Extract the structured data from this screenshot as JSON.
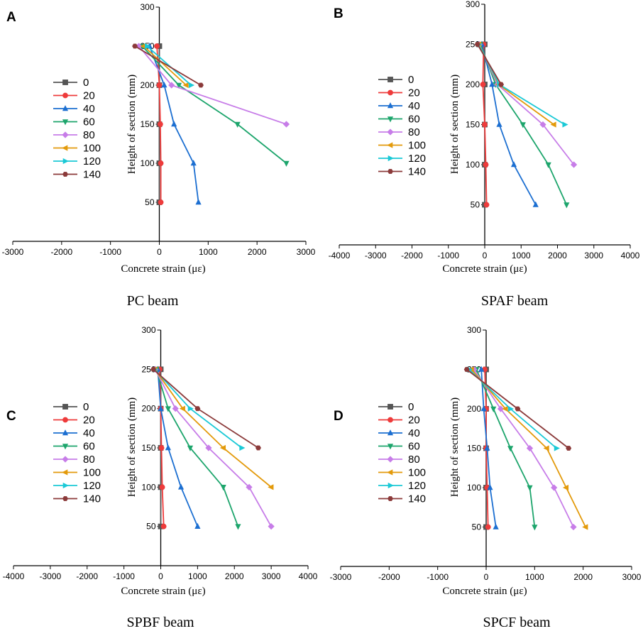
{
  "figure": {
    "series_names": [
      "0",
      "20",
      "40",
      "60",
      "80",
      "100",
      "120",
      "140"
    ],
    "series_colors": [
      "#555555",
      "#ee3b3b",
      "#1c6fd1",
      "#1da56c",
      "#c77de8",
      "#e39a0b",
      "#1bc9d6",
      "#8b3a3a"
    ],
    "markers": [
      "square",
      "circle",
      "triangle-up",
      "triangle-down",
      "diamond",
      "triangle-left",
      "triangle-right",
      "hexagon"
    ]
  },
  "chart_data": [
    {
      "panel": "A",
      "caption": "PC beam",
      "type": "line",
      "xlabel": "Concrete strain (με)",
      "ylabel": "Height of section (mm)",
      "xlim": [
        -3000,
        3000
      ],
      "ylim": [
        0,
        300
      ],
      "xticks": [
        -3000,
        -2000,
        -1000,
        0,
        1000,
        2000,
        3000
      ],
      "yticks": [
        50,
        100,
        150,
        200,
        250,
        300
      ],
      "series": [
        {
          "name": "0",
          "points": [
            [
              0,
              250
            ],
            [
              0,
              200
            ],
            [
              0,
              150
            ],
            [
              0,
              100
            ],
            [
              0,
              50
            ]
          ]
        },
        {
          "name": "20",
          "points": [
            [
              -50,
              250
            ],
            [
              0,
              200
            ],
            [
              20,
              150
            ],
            [
              30,
              100
            ],
            [
              30,
              50
            ]
          ]
        },
        {
          "name": "40",
          "points": [
            [
              -200,
              250
            ],
            [
              100,
              200
            ],
            [
              300,
              150
            ],
            [
              700,
              100
            ],
            [
              800,
              50
            ]
          ]
        },
        {
          "name": "60",
          "points": [
            [
              -350,
              250
            ],
            [
              400,
              200
            ],
            [
              1600,
              150
            ],
            [
              2600,
              100
            ]
          ]
        },
        {
          "name": "80",
          "points": [
            [
              -420,
              250
            ],
            [
              250,
              200
            ],
            [
              2600,
              150
            ]
          ]
        },
        {
          "name": "100",
          "points": [
            [
              -320,
              250
            ],
            [
              550,
              200
            ]
          ]
        },
        {
          "name": "120",
          "points": [
            [
              -250,
              250
            ],
            [
              650,
              200
            ]
          ]
        },
        {
          "name": "140",
          "points": [
            [
              -500,
              250
            ],
            [
              850,
              200
            ]
          ]
        }
      ]
    },
    {
      "panel": "B",
      "caption": "SPAF beam",
      "type": "line",
      "xlabel": "Concrete strain (με)",
      "ylabel": "Height of section (mm)",
      "xlim": [
        -4000,
        4000
      ],
      "ylim": [
        0,
        300
      ],
      "xticks": [
        -4000,
        -3000,
        -2000,
        -1000,
        0,
        1000,
        2000,
        3000,
        4000
      ],
      "yticks": [
        50,
        100,
        150,
        200,
        250,
        300
      ],
      "series": [
        {
          "name": "0",
          "points": [
            [
              0,
              250
            ],
            [
              0,
              200
            ],
            [
              0,
              150
            ],
            [
              0,
              100
            ],
            [
              0,
              50
            ]
          ]
        },
        {
          "name": "20",
          "points": [
            [
              -30,
              250
            ],
            [
              -50,
              200
            ],
            [
              0,
              150
            ],
            [
              30,
              100
            ],
            [
              50,
              50
            ]
          ]
        },
        {
          "name": "40",
          "points": [
            [
              -80,
              250
            ],
            [
              200,
              200
            ],
            [
              400,
              150
            ],
            [
              800,
              100
            ],
            [
              1400,
              50
            ]
          ]
        },
        {
          "name": "60",
          "points": [
            [
              -120,
              250
            ],
            [
              300,
              200
            ],
            [
              1050,
              150
            ],
            [
              1750,
              100
            ],
            [
              2250,
              50
            ]
          ]
        },
        {
          "name": "80",
          "points": [
            [
              -150,
              250
            ],
            [
              350,
              200
            ],
            [
              1600,
              150
            ],
            [
              2450,
              100
            ]
          ]
        },
        {
          "name": "100",
          "points": [
            [
              -160,
              250
            ],
            [
              380,
              200
            ],
            [
              1900,
              150
            ]
          ]
        },
        {
          "name": "120",
          "points": [
            [
              -170,
              250
            ],
            [
              400,
              200
            ],
            [
              2200,
              150
            ]
          ]
        },
        {
          "name": "140",
          "points": [
            [
              -200,
              250
            ],
            [
              450,
              200
            ]
          ]
        }
      ]
    },
    {
      "panel": "C",
      "caption": "SPBF beam",
      "type": "line",
      "xlabel": "Concrete strain (με)",
      "ylabel": "Height of section (mm)",
      "xlim": [
        -4000,
        4000
      ],
      "ylim": [
        0,
        300
      ],
      "xticks": [
        -4000,
        -3000,
        -2000,
        -1000,
        0,
        1000,
        2000,
        3000,
        4000
      ],
      "yticks": [
        50,
        100,
        150,
        200,
        250,
        300
      ],
      "series": [
        {
          "name": "0",
          "points": [
            [
              0,
              250
            ],
            [
              0,
              200
            ],
            [
              0,
              150
            ],
            [
              0,
              100
            ],
            [
              0,
              50
            ]
          ]
        },
        {
          "name": "20",
          "points": [
            [
              -30,
              250
            ],
            [
              0,
              200
            ],
            [
              20,
              150
            ],
            [
              40,
              100
            ],
            [
              80,
              50
            ]
          ]
        },
        {
          "name": "40",
          "points": [
            [
              -80,
              250
            ],
            [
              0,
              200
            ],
            [
              200,
              150
            ],
            [
              550,
              100
            ],
            [
              1000,
              50
            ]
          ]
        },
        {
          "name": "60",
          "points": [
            [
              -120,
              250
            ],
            [
              200,
              200
            ],
            [
              800,
              150
            ],
            [
              1700,
              100
            ],
            [
              2100,
              50
            ]
          ]
        },
        {
          "name": "80",
          "points": [
            [
              -150,
              250
            ],
            [
              400,
              200
            ],
            [
              1300,
              150
            ],
            [
              2400,
              100
            ],
            [
              3000,
              50
            ]
          ]
        },
        {
          "name": "100",
          "points": [
            [
              -160,
              250
            ],
            [
              600,
              200
            ],
            [
              1700,
              150
            ],
            [
              3000,
              100
            ]
          ]
        },
        {
          "name": "120",
          "points": [
            [
              -170,
              250
            ],
            [
              800,
              200
            ],
            [
              2200,
              150
            ]
          ]
        },
        {
          "name": "140",
          "points": [
            [
              -200,
              250
            ],
            [
              1000,
              200
            ],
            [
              2650,
              150
            ]
          ]
        }
      ]
    },
    {
      "panel": "D",
      "caption": "SPCF beam",
      "type": "line",
      "xlabel": "Concrete strain (με)",
      "ylabel": "Height of section (mm)",
      "xlim": [
        -3000,
        3000
      ],
      "ylim": [
        0,
        300
      ],
      "xticks": [
        -3000,
        -2000,
        -1000,
        0,
        1000,
        2000,
        3000
      ],
      "yticks": [
        50,
        100,
        150,
        200,
        250,
        300
      ],
      "series": [
        {
          "name": "0",
          "points": [
            [
              0,
              250
            ],
            [
              0,
              200
            ],
            [
              0,
              150
            ],
            [
              0,
              100
            ],
            [
              0,
              50
            ]
          ]
        },
        {
          "name": "20",
          "points": [
            [
              -30,
              250
            ],
            [
              0,
              200
            ],
            [
              0,
              150
            ],
            [
              20,
              100
            ],
            [
              40,
              50
            ]
          ]
        },
        {
          "name": "40",
          "points": [
            [
              -100,
              250
            ],
            [
              -50,
              200
            ],
            [
              20,
              150
            ],
            [
              80,
              100
            ],
            [
              200,
              50
            ]
          ]
        },
        {
          "name": "60",
          "points": [
            [
              -200,
              250
            ],
            [
              150,
              200
            ],
            [
              500,
              150
            ],
            [
              900,
              100
            ],
            [
              1000,
              50
            ]
          ]
        },
        {
          "name": "80",
          "points": [
            [
              -250,
              250
            ],
            [
              300,
              200
            ],
            [
              900,
              150
            ],
            [
              1400,
              100
            ],
            [
              1800,
              50
            ]
          ]
        },
        {
          "name": "100",
          "points": [
            [
              -300,
              250
            ],
            [
              400,
              200
            ],
            [
              1250,
              150
            ],
            [
              1650,
              100
            ],
            [
              2050,
              50
            ]
          ]
        },
        {
          "name": "120",
          "points": [
            [
              -350,
              250
            ],
            [
              500,
              200
            ],
            [
              1450,
              150
            ]
          ]
        },
        {
          "name": "140",
          "points": [
            [
              -400,
              250
            ],
            [
              650,
              200
            ],
            [
              1700,
              150
            ]
          ]
        }
      ]
    }
  ]
}
